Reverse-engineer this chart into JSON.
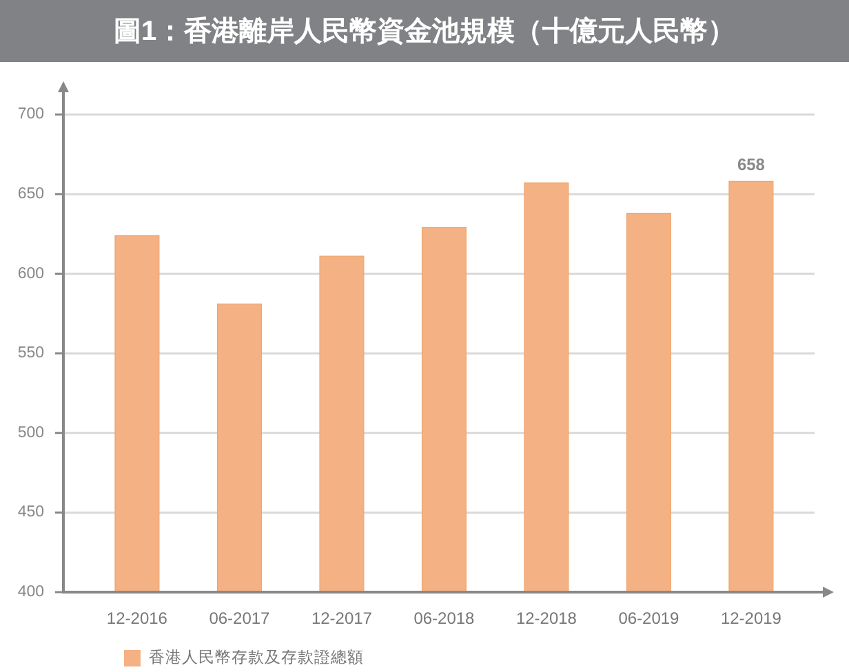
{
  "chart_data": {
    "type": "bar",
    "title": "圖1：香港離岸人民幣資金池規模（十億元人民幣）",
    "categories": [
      "12-2016",
      "06-2017",
      "12-2017",
      "06-2018",
      "12-2018",
      "06-2019",
      "12-2019"
    ],
    "series": [
      {
        "name": "香港人民幣存款及存款證總額",
        "color": "#f4b183",
        "values": [
          624,
          581,
          611,
          629,
          657,
          638,
          658
        ],
        "value_labels": [
          null,
          null,
          null,
          null,
          null,
          null,
          "658"
        ]
      }
    ],
    "ylim": [
      400,
      720
    ],
    "yticks": [
      400,
      450,
      500,
      550,
      600,
      650,
      700
    ],
    "grid": "y",
    "legend": "bottom left"
  }
}
